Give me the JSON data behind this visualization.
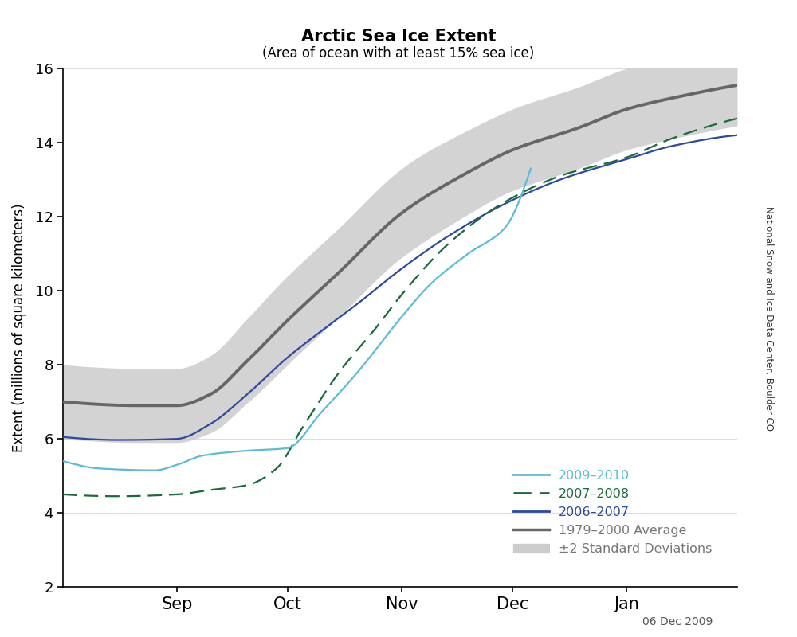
{
  "title": "Arctic Sea Ice Extent",
  "subtitle": "(Area of ocean with at least 15% sea ice)",
  "ylabel": "Extent (millions of square kilometers)",
  "watermark": "06 Dec 2009",
  "side_label": "National Snow and Ice Data Center, Boulder CO",
  "ylim": [
    2,
    16
  ],
  "yticks": [
    2,
    4,
    6,
    8,
    10,
    12,
    14,
    16
  ],
  "month_labels": [
    "Sep",
    "Oct",
    "Nov",
    "Dec",
    "Jan"
  ],
  "colors": {
    "line_2009": "#5BBCD6",
    "line_2007": "#1A6B3C",
    "line_2006": "#2B4A9E",
    "avg": "#666666",
    "shade": "#CCCCCC"
  },
  "legend_labels": [
    "2009–2010",
    "2007–2008",
    "2006–2007",
    "1979–2000 Average",
    "±2 Standard Deviations"
  ]
}
